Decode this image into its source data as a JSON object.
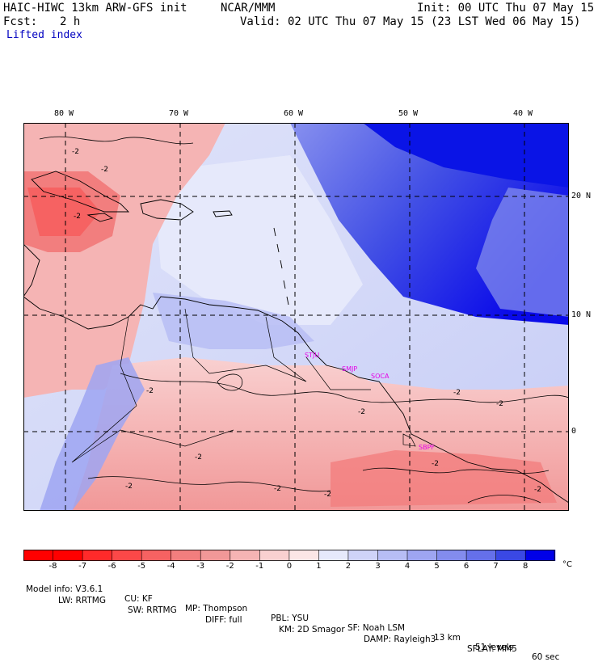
{
  "header": {
    "model_title": "HAIC-HIWC 13km ARW-GFS init",
    "org": "NCAR/MMM",
    "init": "Init: 00 UTC Thu 07 May 15",
    "fcst_label": "Fcst:",
    "fcst_value": "2 h",
    "valid": "Valid: 02 UTC Thu 07 May 15 (23 LST Wed 06 May 15)",
    "field": "Lifted index"
  },
  "map": {
    "lon_labels": [
      "80 W",
      "70 W",
      "60 W",
      "50 W",
      "40 W"
    ],
    "lat_labels": [
      "20 N",
      "10 N",
      "0"
    ],
    "stations": [
      "STJU",
      "SMJP",
      "SOCA",
      "SBPF"
    ],
    "contour_labels": [
      "-2",
      "-2",
      "-2",
      "-2",
      "-2",
      "-2",
      "-2",
      "-2",
      "-2",
      "-2",
      "-2",
      "-2",
      "-2"
    ]
  },
  "colorbar": {
    "ticks": [
      "-8",
      "-7",
      "-6",
      "-5",
      "-4",
      "-3",
      "-2",
      "-1",
      "0",
      "1",
      "2",
      "3",
      "4",
      "5",
      "6",
      "7",
      "8"
    ],
    "unit": "°C",
    "colors": [
      "#ff0000",
      "#ff2a2a",
      "#fb4848",
      "#f66262",
      "#f27e7e",
      "#f19898",
      "#f5b4b4",
      "#f9d0d0",
      "#fbe6e6",
      "#e6e9fb",
      "#cfd3f8",
      "#b7bdf5",
      "#9ea5f2",
      "#838cee",
      "#6570ea",
      "#3a48e4",
      "#0000e8"
    ]
  },
  "footer": {
    "line1": [
      "Model info: V3.6.1",
      "CU: KF",
      "MP: Thompson",
      "PBL: YSU",
      "SF: Noah LSM",
      "13 km",
      "51 levels",
      "60 sec"
    ],
    "line2": [
      "LW: RRTMG",
      "SW: RRTMG",
      "DIFF: full",
      "KM: 2D Smagor",
      "DAMP: Rayleigh3",
      "SFLAY: MM5"
    ]
  }
}
